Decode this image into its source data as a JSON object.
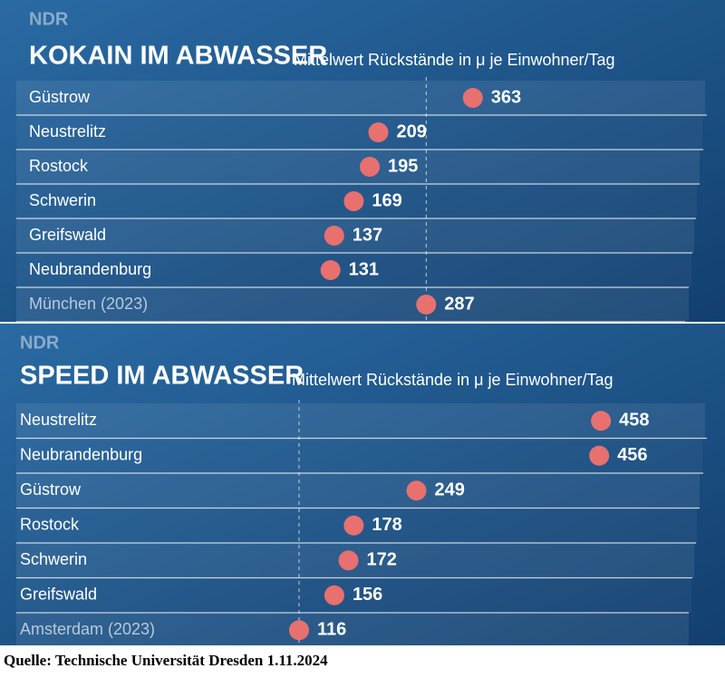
{
  "chart_data": [
    {
      "type": "dot",
      "logo": "NDR",
      "title": "KOKAIN IM ABWASSER",
      "subtitle": "Mittelwert Rückstände in μ je Einwohner/Tag",
      "categories": [
        "Güstrow",
        "Neustrelitz",
        "Rostock",
        "Schwerin",
        "Greifswald",
        "Neubrandenburg",
        "München (2023)"
      ],
      "values": [
        363,
        209,
        195,
        169,
        137,
        131,
        287
      ],
      "color": "#e8706f"
    },
    {
      "type": "dot",
      "logo": "NDR",
      "title": "SPEED IM ABWASSER",
      "subtitle": "Mittelwert Rückstände in μ je Einwohner/Tag",
      "categories": [
        "Neustrelitz",
        "Neubrandenburg",
        "Güstrow",
        "Rostock",
        "Schwerin",
        "Greifswald",
        "Amsterdam (2023)"
      ],
      "values": [
        458,
        456,
        249,
        178,
        172,
        156,
        116
      ],
      "color": "#e8706f"
    }
  ],
  "source": "Quelle: Technische Universität Dresden 1.11.2024"
}
